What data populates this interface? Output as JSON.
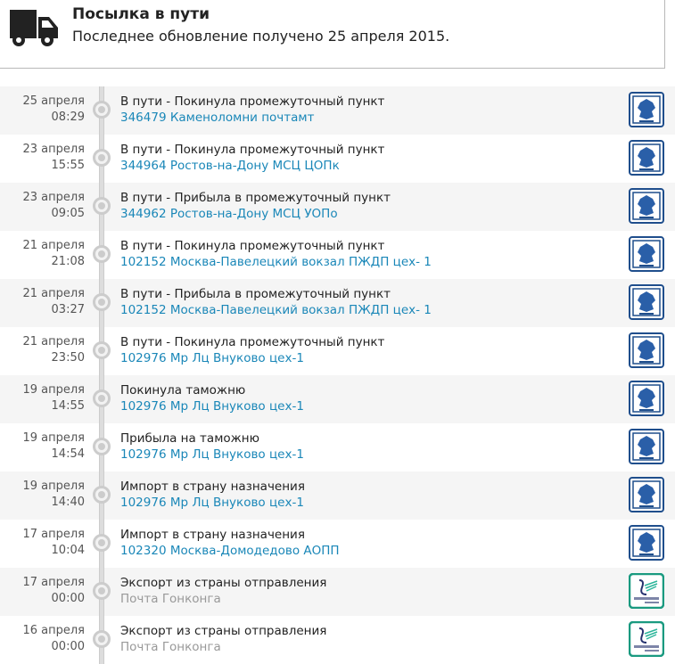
{
  "header": {
    "title": "Посылка в пути",
    "subtitle": "Последнее обновление получено 25 апреля 2015.",
    "icon": "truck-icon"
  },
  "colors": {
    "link": "#1a87b8",
    "russian_post": "#1f4e8c",
    "hongkong_post": "#1a9a80"
  },
  "events": [
    {
      "date": "25 апреля",
      "time": "08:29",
      "status": "В пути - Покинула промежуточный пункт",
      "place": "346479 Каменоломни почтамт",
      "carrier": "russian-post"
    },
    {
      "date": "23 апреля",
      "time": "15:55",
      "status": "В пути - Покинула промежуточный пункт",
      "place": "344964 Ростов-на-Дону МСЦ ЦОПк",
      "carrier": "russian-post"
    },
    {
      "date": "23 апреля",
      "time": "09:05",
      "status": "В пути - Прибыла в промежуточный пункт",
      "place": "344962 Ростов-на-Дону МСЦ УОПо",
      "carrier": "russian-post"
    },
    {
      "date": "21 апреля",
      "time": "21:08",
      "status": "В пути - Покинула промежуточный пункт",
      "place": "102152 Москва-Павелецкий вокзал ПЖДП цех- 1",
      "carrier": "russian-post"
    },
    {
      "date": "21 апреля",
      "time": "03:27",
      "status": "В пути - Прибыла в промежуточный пункт",
      "place": "102152 Москва-Павелецкий вокзал ПЖДП цех- 1",
      "carrier": "russian-post"
    },
    {
      "date": "21 апреля",
      "time": "23:50",
      "status": "В пути - Покинула промежуточный пункт",
      "place": "102976 Мр Лц Внуково цех-1",
      "carrier": "russian-post"
    },
    {
      "date": "19 апреля",
      "time": "14:55",
      "status": "Покинула таможню",
      "place": "102976 Мр Лц Внуково цех-1",
      "carrier": "russian-post"
    },
    {
      "date": "19 апреля",
      "time": "14:54",
      "status": "Прибыла на таможню",
      "place": "102976 Мр Лц Внуково цех-1",
      "carrier": "russian-post"
    },
    {
      "date": "19 апреля",
      "time": "14:40",
      "status": "Импорт в страну назначения",
      "place": "102976 Мр Лц Внуково цех-1",
      "carrier": "russian-post"
    },
    {
      "date": "17 апреля",
      "time": "10:04",
      "status": "Импорт в страну назначения",
      "place": "102320 Москва-Домодедово АОПП",
      "carrier": "russian-post"
    },
    {
      "date": "17 апреля",
      "time": "00:00",
      "status": "Экспорт из страны отправления",
      "place": "Почта Гонконга",
      "carrier": "hongkong-post"
    },
    {
      "date": "16 апреля",
      "time": "00:00",
      "status": "Экспорт из страны отправления",
      "place": "Почта Гонконга",
      "carrier": "hongkong-post"
    }
  ]
}
